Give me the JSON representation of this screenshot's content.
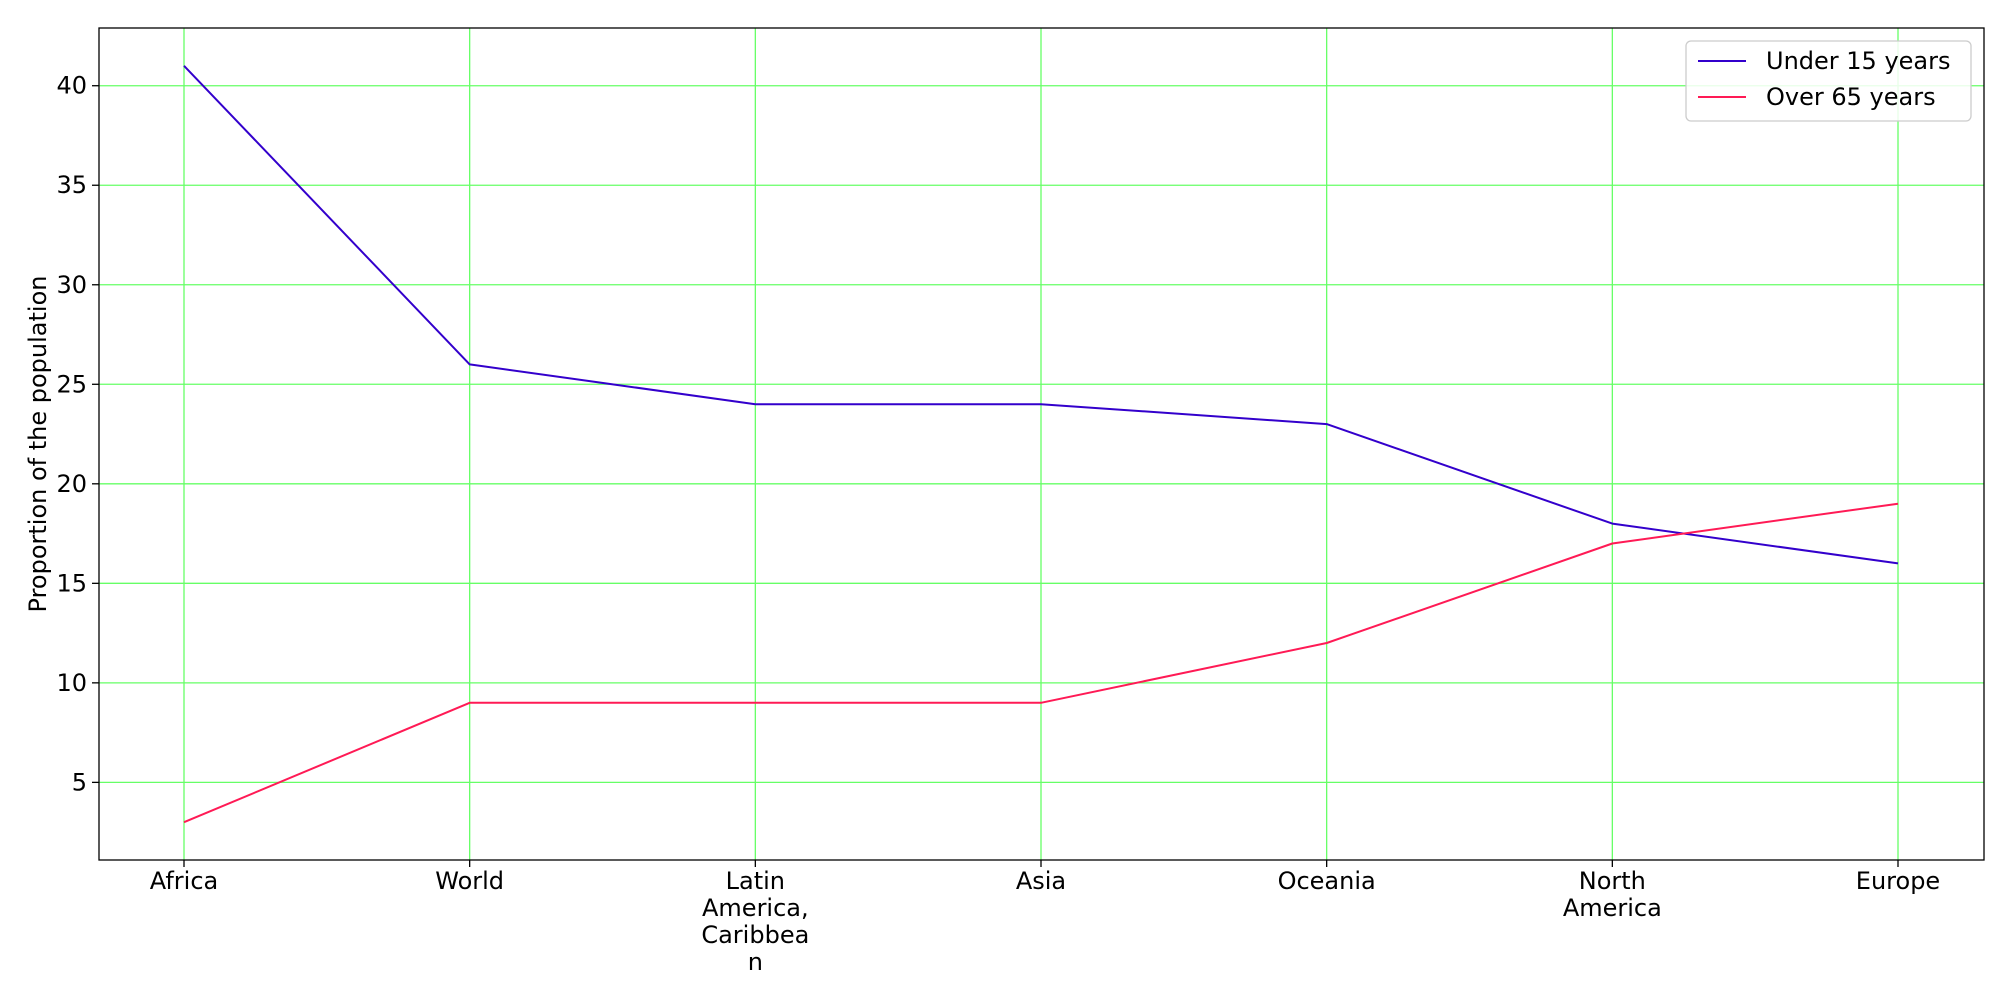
{
  "chart_data": {
    "type": "line",
    "title": "",
    "xlabel": "",
    "ylabel": "Proportion of the population",
    "categories": [
      "Africa",
      "World",
      "Latin America, Caribbean",
      "Asia",
      "Oceania",
      "North America",
      "Europe"
    ],
    "category_tick_lines": [
      [
        "Africa"
      ],
      [
        "World"
      ],
      [
        "Latin",
        "America,",
        "Caribbea",
        "n"
      ],
      [
        "Asia"
      ],
      [
        "Oceania"
      ],
      [
        "North",
        "America"
      ],
      [
        "Europe"
      ]
    ],
    "series": [
      {
        "name": "Under 15 years",
        "color": "#3300cc",
        "values": [
          41,
          26,
          24,
          24,
          23,
          18,
          16
        ]
      },
      {
        "name": "Over 65 years",
        "color": "#ff1a55",
        "values": [
          3,
          9,
          9,
          9,
          12,
          17,
          19
        ]
      }
    ],
    "ylim": [
      1.1,
      42.9
    ],
    "yticks": [
      5,
      10,
      15,
      20,
      25,
      30,
      35,
      40
    ],
    "grid": true,
    "grid_color": "#66ff66",
    "legend_position": "top-right"
  }
}
